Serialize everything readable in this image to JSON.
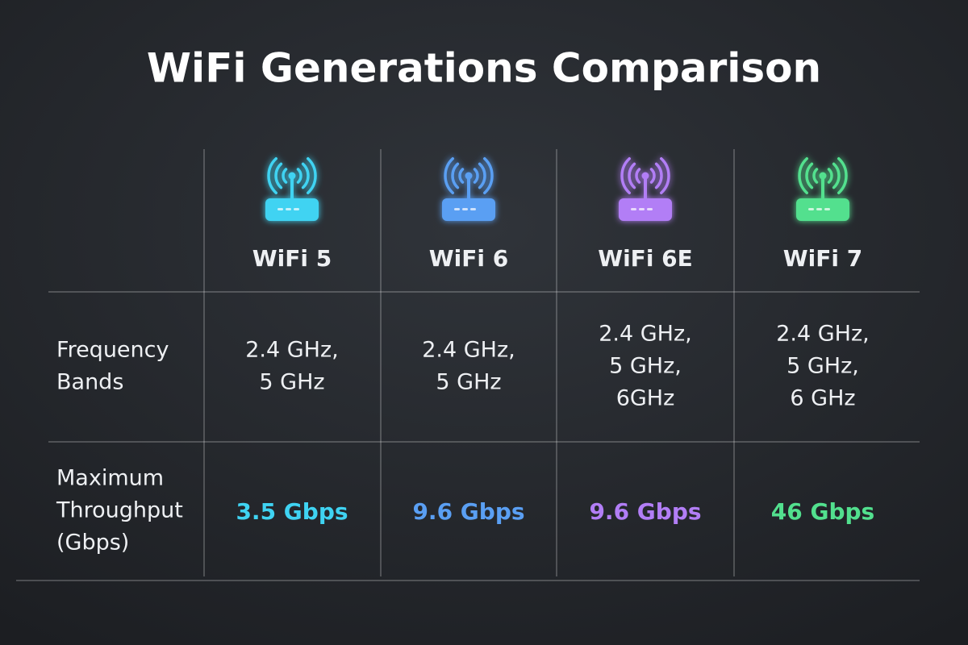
{
  "title": "WiFi Generations Comparison",
  "table": {
    "columns": [
      {
        "name": "WiFi 5",
        "color": "#3fd3f2"
      },
      {
        "name": "WiFi 6",
        "color": "#5a9ff3"
      },
      {
        "name": "WiFi 6E",
        "color": "#b27ef6"
      },
      {
        "name": "WiFi 7",
        "color": "#52e08e"
      }
    ],
    "rows": [
      {
        "label": [
          "Frequency",
          "Bands"
        ],
        "cells": [
          [
            "2.4 GHz,",
            "5 GHz"
          ],
          [
            "2.4 GHz,",
            "5 GHz"
          ],
          [
            "2.4 GHz,",
            "5 GHz,",
            "6GHz"
          ],
          [
            "2.4 GHz,",
            "5 GHz,",
            "6 GHz"
          ]
        ]
      },
      {
        "label": [
          "Maximum",
          "Throughput",
          "(Gbps)"
        ],
        "cells": [
          "3.5 Gbps",
          "9.6 Gbps",
          "9.6 Gbps",
          "46 Gbps"
        ]
      }
    ]
  }
}
